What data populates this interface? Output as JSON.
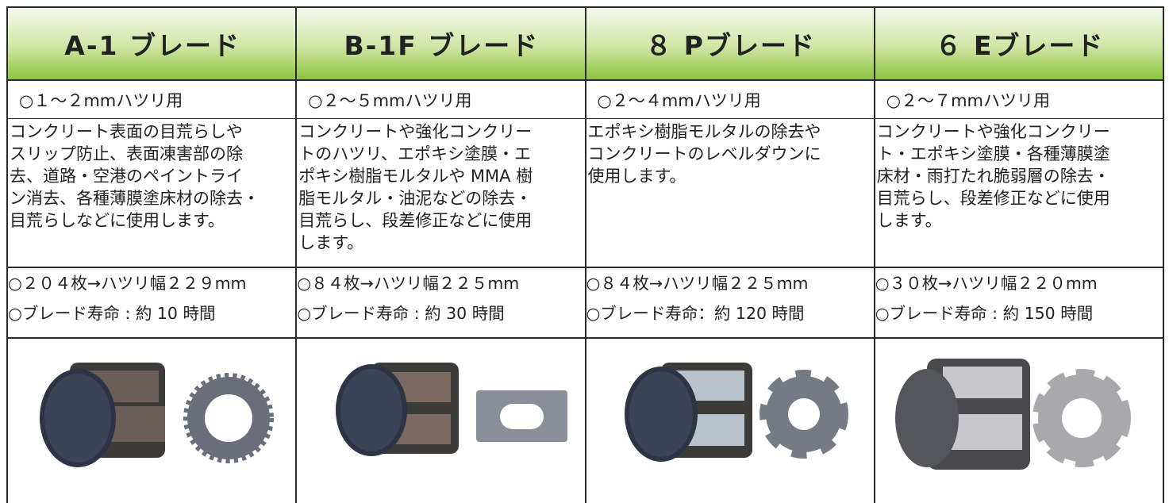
{
  "columns": [
    {
      "title": "A-1 ブレード",
      "range": "○１～２mmハツリ用",
      "description": [
        "コンクリート表面の目荒らしや",
        "スリップ防止、表面凍害部の除",
        "去、道路・空港のペイントライ",
        "ン消去、各種薄膜塗床材の除去・",
        "目荒らしなどに使用します。"
      ],
      "specs": [
        "○２０４枚→ハツリ幅２２９mm",
        "○ブレード寿命 : 約 10 時間"
      ]
    },
    {
      "title": "B-1F ブレード",
      "range": "○２～５mmハツリ用",
      "description": [
        "コンクリートや強化コンクリー",
        "トのハツリ、エポキシ塗膜・エ",
        "ポキシ樹脂モルタルや MMA 樹",
        "脂モルタル・油泥などの除去・",
        "目荒らし、段差修正などに使用",
        "します。"
      ],
      "specs": [
        "○８４枚→ハツリ幅２２５mm",
        "○ブレード寿命 : 約 30 時間"
      ]
    },
    {
      "title": "８ Pブレード",
      "range": "○２～４mmハツリ用",
      "description": [
        "エポキシ樹脂モルタルの除去や",
        "コンクリートのレベルダウンに",
        "使用します。"
      ],
      "specs": [
        "○８４枚→ハツリ幅２２５mm",
        "○ブレード寿命：約 120 時間"
      ]
    },
    {
      "title": "６ Eブレード",
      "range": "○２～７mmハツリ用",
      "description": [
        "コンクリートや強化コンクリー",
        "ト・エポキシ塗膜・各種薄膜塗",
        "床材・雨打たれ脆弱層の除去・",
        "目荒らし、段差修正などに使用",
        "します。"
      ],
      "specs": [
        "○３０枚→ハツリ幅２２０mm",
        "○ブレード寿命 : 約 150 時間"
      ]
    }
  ]
}
